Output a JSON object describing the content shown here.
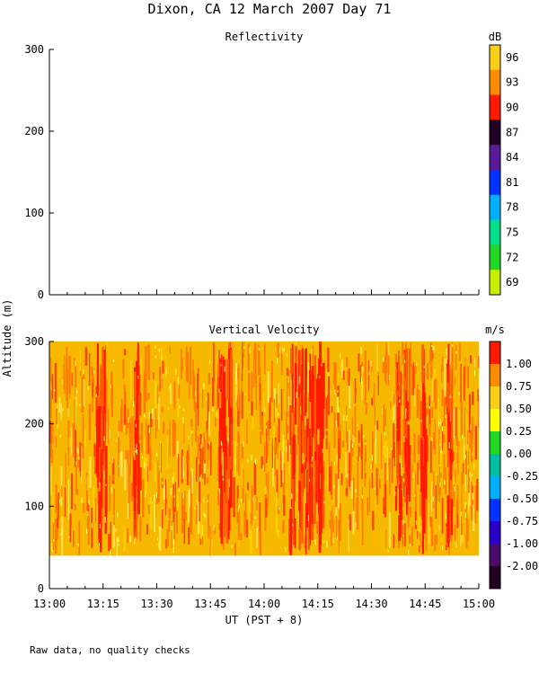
{
  "figure": {
    "title": "Dixon, CA 12 March 2007  Day  71",
    "shared_ylabel": "Altitude (m)",
    "xlabel": "UT  (PST + 8)",
    "footnote": "Raw data, no quality checks"
  },
  "chart_data": [
    {
      "type": "heatmap",
      "title": "Reflectivity",
      "colorbar_unit": "dB",
      "y_ticks": [
        0,
        100,
        200,
        300
      ],
      "ylim": [
        0,
        300
      ],
      "x_ticks": [
        "13:00",
        "13:15",
        "13:30",
        "13:45",
        "14:00",
        "14:15",
        "14:30",
        "14:45",
        "15:00"
      ],
      "xlim": [
        "13:00",
        "15:00"
      ],
      "data": "no returns (panel empty)",
      "colorbar_ticks": [
        "96",
        "93",
        "90",
        "87",
        "84",
        "81",
        "78",
        "75",
        "72",
        "69"
      ],
      "colorbar_colors": [
        "#f7cf17",
        "#ff8c00",
        "#ff1a00",
        "#220022",
        "#5a1a9a",
        "#0033ff",
        "#00b0ff",
        "#00e08a",
        "#22d822",
        "#c6f000"
      ]
    },
    {
      "type": "heatmap",
      "title": "Vertical Velocity",
      "colorbar_unit": "m/s",
      "y_ticks": [
        0,
        100,
        200,
        300
      ],
      "ylim": [
        0,
        300
      ],
      "x_ticks": [
        "13:00",
        "13:15",
        "13:30",
        "13:45",
        "14:00",
        "14:15",
        "14:30",
        "14:45",
        "15:00"
      ],
      "xlim": [
        "13:00",
        "15:00"
      ],
      "data_altitude_range": [
        40,
        300
      ],
      "dominant_values": [
        0.5,
        0.75,
        1.0
      ],
      "colorbar_ticks": [
        "1.00",
        "0.75",
        "0.50",
        "0.25",
        "0.00",
        "-0.25",
        "-0.50",
        "-0.75",
        "-1.00",
        "-2.00"
      ],
      "colorbar_colors": [
        "#ff1a00",
        "#ff8c00",
        "#f7cf17",
        "#ffff00",
        "#22d822",
        "#00c0a0",
        "#00b0ff",
        "#0033ff",
        "#2a00cc",
        "#4a0a6a",
        "#220022"
      ]
    }
  ]
}
